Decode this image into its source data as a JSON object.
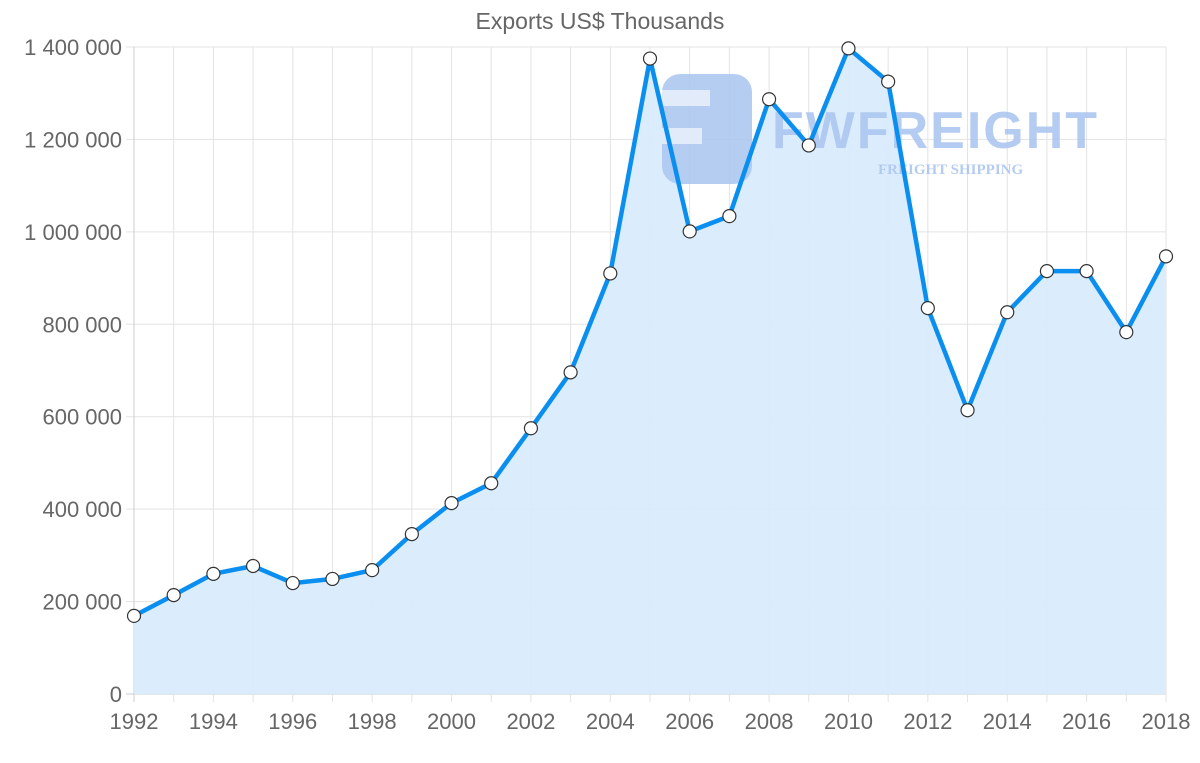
{
  "chart_data": {
    "type": "line",
    "title": "Exports US$ Thousands",
    "xlabel": "",
    "ylabel": "",
    "ylim": [
      0,
      1400000
    ],
    "grid": true,
    "legend": "none",
    "fill": "area",
    "x": [
      1992,
      1993,
      1994,
      1995,
      1996,
      1997,
      1998,
      1999,
      2000,
      2001,
      2002,
      2003,
      2004,
      2005,
      2006,
      2007,
      2008,
      2009,
      2010,
      2011,
      2012,
      2013,
      2014,
      2015,
      2016,
      2017,
      2018
    ],
    "series": [
      {
        "name": "Exports US$ Thousands",
        "values": [
          169000,
          214000,
          260000,
          277000,
          240000,
          249000,
          268000,
          346000,
          413000,
          456000,
          575000,
          696000,
          910000,
          1375000,
          1001000,
          1034000,
          1287000,
          1187000,
          1397000,
          1325000,
          835000,
          614000,
          826000,
          915000,
          915000,
          783000,
          947000
        ]
      }
    ],
    "y_ticks": [
      {
        "value": 0,
        "label": "0"
      },
      {
        "value": 200000,
        "label": "200 000"
      },
      {
        "value": 400000,
        "label": "400 000"
      },
      {
        "value": 600000,
        "label": "600 000"
      },
      {
        "value": 800000,
        "label": "800 000"
      },
      {
        "value": 1000000,
        "label": "1 000 000"
      },
      {
        "value": 1200000,
        "label": "1 200 000"
      },
      {
        "value": 1400000,
        "label": "1 400 000"
      }
    ],
    "x_ticks": [
      "1992",
      "1994",
      "1996",
      "1998",
      "2000",
      "2002",
      "2004",
      "2006",
      "2008",
      "2010",
      "2012",
      "2014",
      "2016",
      "2018"
    ]
  },
  "watermark": {
    "brand": "FWFREIGHT",
    "tagline": "FREIGHT SHIPPING"
  },
  "colors": {
    "line": "#0a8ff0",
    "fill": "#d9ecfd",
    "grid": "#e3e3e3",
    "axis_text": "#666666",
    "point_fill": "#ffffff",
    "point_stroke": "#333333",
    "watermark": "#a9c4f0"
  }
}
